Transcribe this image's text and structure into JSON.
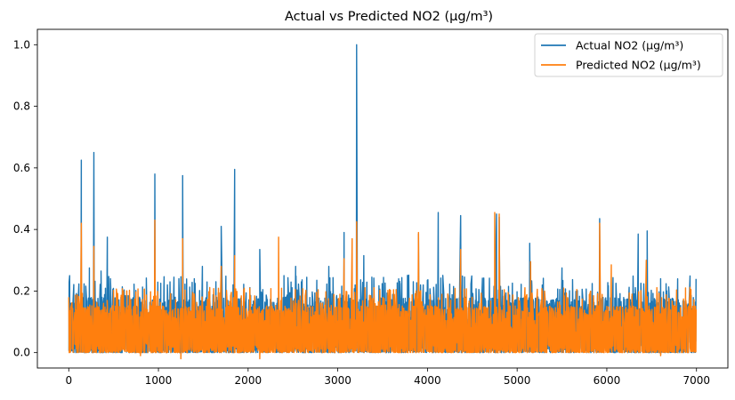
{
  "chart_data": {
    "type": "line",
    "title": "Actual vs Predicted NO2 (µg/m³)",
    "xlabel": "",
    "ylabel": "",
    "xlim": [
      -350,
      7350
    ],
    "ylim": [
      -0.05,
      1.05
    ],
    "xticks": [
      0,
      1000,
      2000,
      3000,
      4000,
      5000,
      6000,
      7000
    ],
    "yticks": [
      0.0,
      0.2,
      0.4,
      0.6,
      0.8,
      1.0
    ],
    "xtick_labels": [
      "0",
      "1000",
      "2000",
      "3000",
      "4000",
      "5000",
      "6000",
      "7000"
    ],
    "ytick_labels": [
      "0.0",
      "0.2",
      "0.4",
      "0.6",
      "0.8",
      "1.0"
    ],
    "grid": false,
    "legend_position": "top-right",
    "n_points": 7000,
    "series": [
      {
        "name": "Actual NO2 (µg/m³)",
        "color": "#1f77b4",
        "baseline_range": [
          0.0,
          0.18
        ],
        "spikes": [
          [
            10,
            0.25
          ],
          [
            140,
            0.625
          ],
          [
            230,
            0.275
          ],
          [
            280,
            0.65
          ],
          [
            360,
            0.265
          ],
          [
            430,
            0.375
          ],
          [
            960,
            0.58
          ],
          [
            1100,
            0.22
          ],
          [
            1270,
            0.575
          ],
          [
            1400,
            0.24
          ],
          [
            1490,
            0.28
          ],
          [
            1700,
            0.41
          ],
          [
            1850,
            0.595
          ],
          [
            2130,
            0.335
          ],
          [
            2400,
            0.25
          ],
          [
            2530,
            0.28
          ],
          [
            2900,
            0.28
          ],
          [
            3070,
            0.39
          ],
          [
            3210,
            1.0
          ],
          [
            3290,
            0.315
          ],
          [
            3380,
            0.245
          ],
          [
            3900,
            0.385
          ],
          [
            4120,
            0.455
          ],
          [
            4370,
            0.445
          ],
          [
            4770,
            0.45
          ],
          [
            4800,
            0.44
          ],
          [
            5140,
            0.355
          ],
          [
            5500,
            0.275
          ],
          [
            5920,
            0.435
          ],
          [
            6350,
            0.385
          ],
          [
            6450,
            0.395
          ],
          [
            6600,
            0.24
          ]
        ]
      },
      {
        "name": "Predicted NO2 (µg/m³)",
        "color": "#ff7f0e",
        "baseline_range": [
          0.0,
          0.16
        ],
        "spikes": [
          [
            0,
            0.18
          ],
          [
            140,
            0.42
          ],
          [
            280,
            0.345
          ],
          [
            960,
            0.43
          ],
          [
            1270,
            0.37
          ],
          [
            1700,
            0.28
          ],
          [
            1850,
            0.315
          ],
          [
            2340,
            0.375
          ],
          [
            3070,
            0.305
          ],
          [
            3160,
            0.37
          ],
          [
            3210,
            0.425
          ],
          [
            3900,
            0.39
          ],
          [
            4370,
            0.335
          ],
          [
            4750,
            0.455
          ],
          [
            4800,
            0.45
          ],
          [
            5150,
            0.295
          ],
          [
            5920,
            0.42
          ],
          [
            6050,
            0.285
          ],
          [
            6440,
            0.3
          ]
        ],
        "dips": [
          [
            800,
            -0.01
          ],
          [
            1250,
            -0.02
          ],
          [
            2130,
            -0.02
          ],
          [
            6600,
            -0.01
          ]
        ]
      }
    ]
  }
}
